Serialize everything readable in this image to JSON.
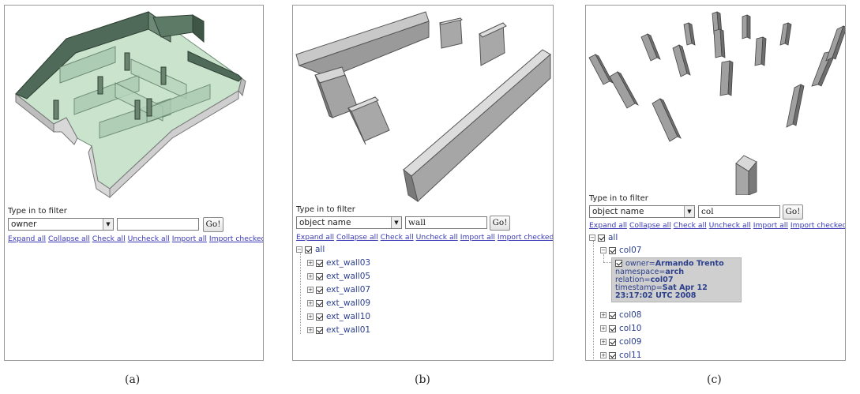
{
  "panels": {
    "a": {
      "caption": "(a)",
      "filter_label": "Type in to filter",
      "select_value": "owner",
      "text_value": "",
      "go_label": "Go!",
      "links": [
        "Expand all",
        "Collapse all",
        "Check all",
        "Uncheck all",
        "Import all",
        "Import checked"
      ]
    },
    "b": {
      "caption": "(b)",
      "filter_label": "Type in to filter",
      "select_value": "object name",
      "text_value": "wall",
      "go_label": "Go!",
      "links": [
        "Expand all",
        "Collapse all",
        "Check all",
        "Uncheck all",
        "Import all",
        "Import checked"
      ],
      "tree_root": "all",
      "tree_items": [
        "ext_wall03",
        "ext_wall05",
        "ext_wall07",
        "ext_wall09",
        "ext_wall10",
        "ext_wall01"
      ]
    },
    "c": {
      "caption": "(c)",
      "filter_label": "Type in to filter",
      "select_value": "object name",
      "text_value": "col",
      "go_label": "Go!",
      "links": [
        "Expand all",
        "Collapse all",
        "Check all",
        "Uncheck all",
        "Import all",
        "Import checked"
      ],
      "tree_root": "all",
      "expanded_item": "col07",
      "info": {
        "owner_key": "owner=",
        "owner_val": "Armando Trento",
        "namespace_key": "namespace=",
        "namespace_val": "arch",
        "relation_key": "relation=",
        "relation_val": "col07",
        "timestamp_key": "timestamp=",
        "timestamp_val": "Sat Apr 12",
        "timestamp_val2": "23:17:02 UTC 2008"
      },
      "tree_items": [
        "col08",
        "col10",
        "col09",
        "col11"
      ]
    }
  },
  "colors": {
    "glass_green": "#cfe6d3",
    "wall_dark_green": "#4f6a58",
    "gray_face": "#a6a6a6",
    "gray_top": "#dcdcdc",
    "link_blue": "#3a3ab8",
    "tree_blue": "#2b3f8c"
  }
}
